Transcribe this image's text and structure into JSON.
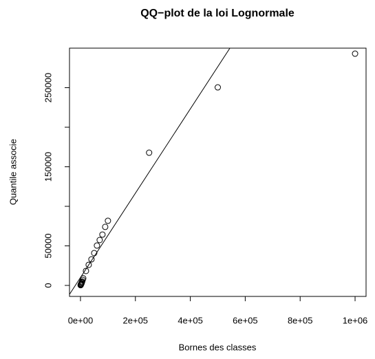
{
  "chart_data": {
    "type": "scatter",
    "title": "QQ−plot de la loi Lognormale",
    "x_label": "Bornes des classes",
    "y_label": "Quantile associe",
    "x": [
      1000000,
      500000,
      250000,
      100000,
      90000,
      80000,
      70000,
      60000,
      50000,
      40000,
      30000,
      20000,
      10000,
      8000,
      6000,
      5000,
      4000,
      3000,
      2000,
      1000,
      500
    ],
    "values": [
      293000,
      250400,
      167800,
      81700,
      74000,
      64300,
      57400,
      50400,
      40900,
      33000,
      26000,
      18300,
      9000,
      7000,
      5000,
      4000,
      3000,
      2000,
      1500,
      800,
      300
    ],
    "color": "#000000",
    "line": {
      "intercept": 10000,
      "slope": 0.533
    },
    "xlim": [
      -40000,
      1040000
    ],
    "ylim": [
      -13900,
      300000
    ],
    "xticks": [
      {
        "value": 0,
        "label": "0e+00"
      },
      {
        "value": 200000,
        "label": "2e+05"
      },
      {
        "value": 400000,
        "label": "4e+05"
      },
      {
        "value": 600000,
        "label": "6e+05"
      },
      {
        "value": 800000,
        "label": "8e+05"
      },
      {
        "value": 1000000,
        "label": "1e+06"
      }
    ],
    "yticks": [
      0,
      50000,
      {
        "value": 100000,
        "label": null
      },
      150000,
      {
        "value": 200000,
        "label": null
      },
      250000
    ]
  }
}
